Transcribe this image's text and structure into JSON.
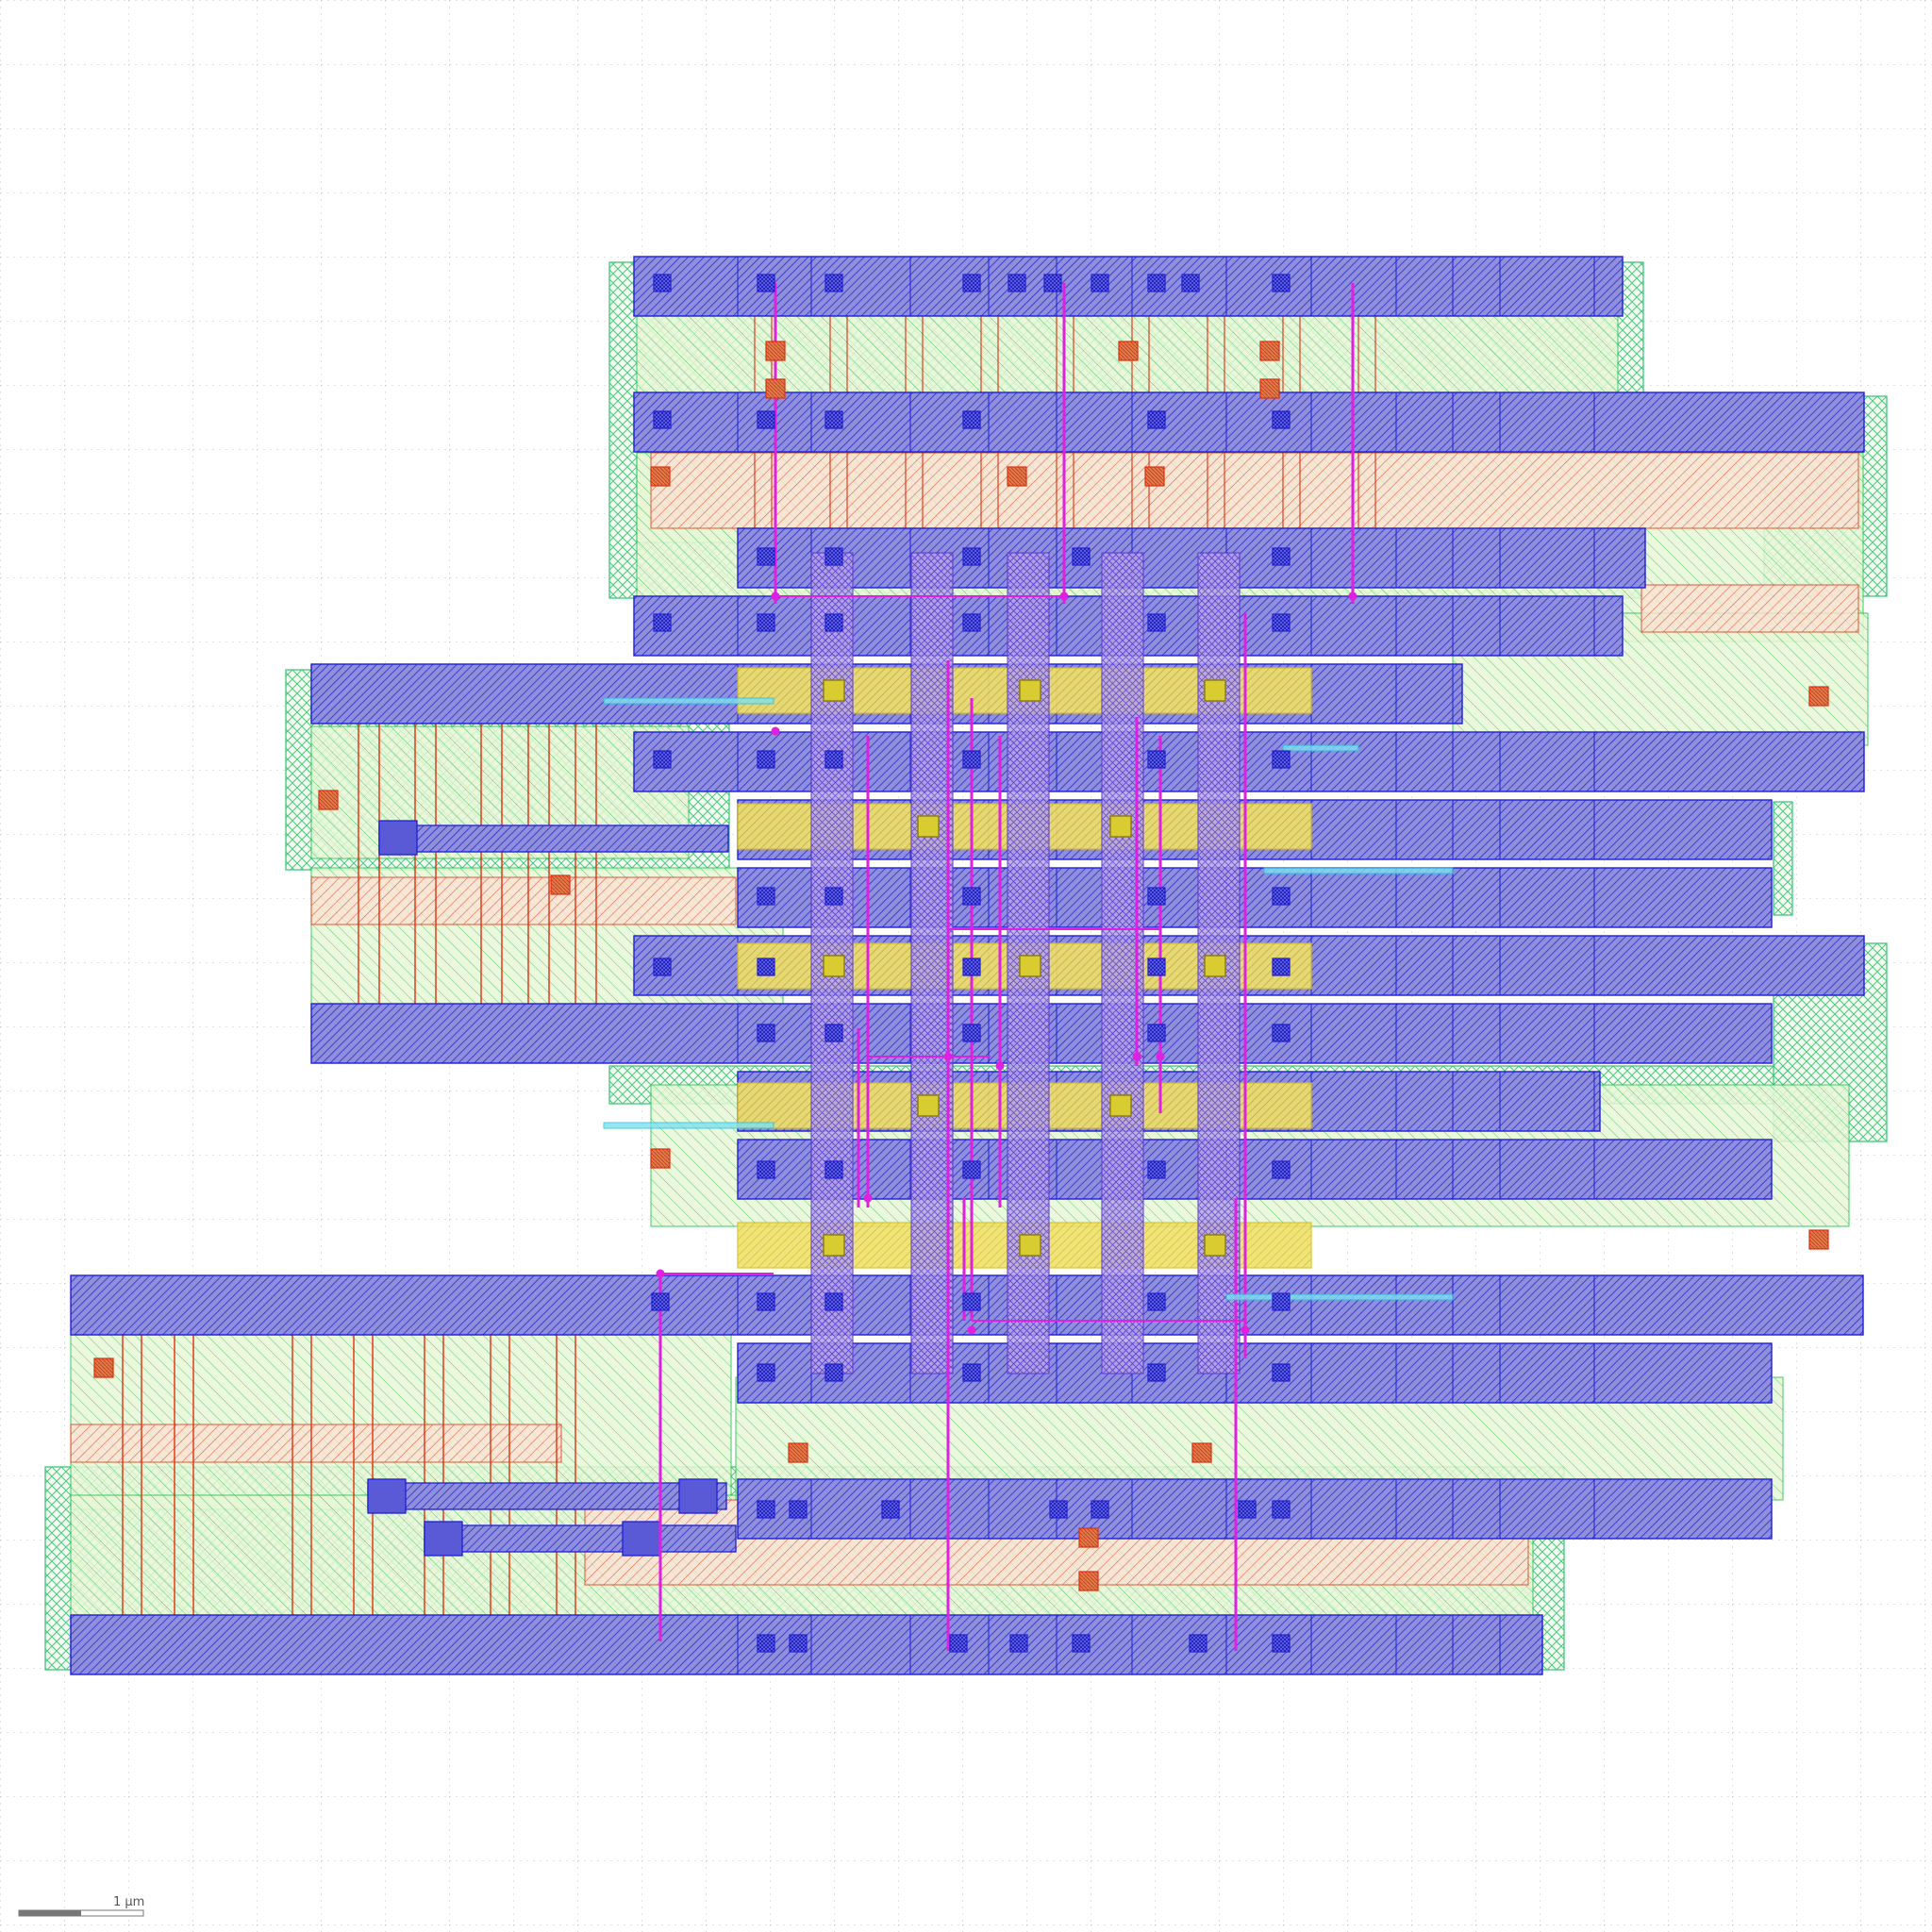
{
  "viewer": {
    "scale_bar_label": "1 µm"
  },
  "colors": {
    "background": "#ffffff",
    "grid": "#bdbdbd",
    "metal1": "#1f1fd6",
    "metal1_fill": "#3b3bc9",
    "metal2": "#e020e0",
    "poly": "#e03010",
    "diffusion": "#20c050",
    "nwell": "#30c070",
    "implant": "#f0a070",
    "highlight": "#f0e020",
    "via": "#2020d0",
    "text_layer": "#20c0e0"
  },
  "layers": [
    {
      "name": "metal1",
      "color": "#1f1fd6"
    },
    {
      "name": "metal2",
      "color": "#e020e0"
    },
    {
      "name": "poly",
      "color": "#e03010"
    },
    {
      "name": "diffusion",
      "color": "#20c050"
    },
    {
      "name": "nwell",
      "color": "#30c070"
    },
    {
      "name": "implant",
      "color": "#f0a070"
    },
    {
      "name": "highlight",
      "color": "#f0e020"
    }
  ]
}
